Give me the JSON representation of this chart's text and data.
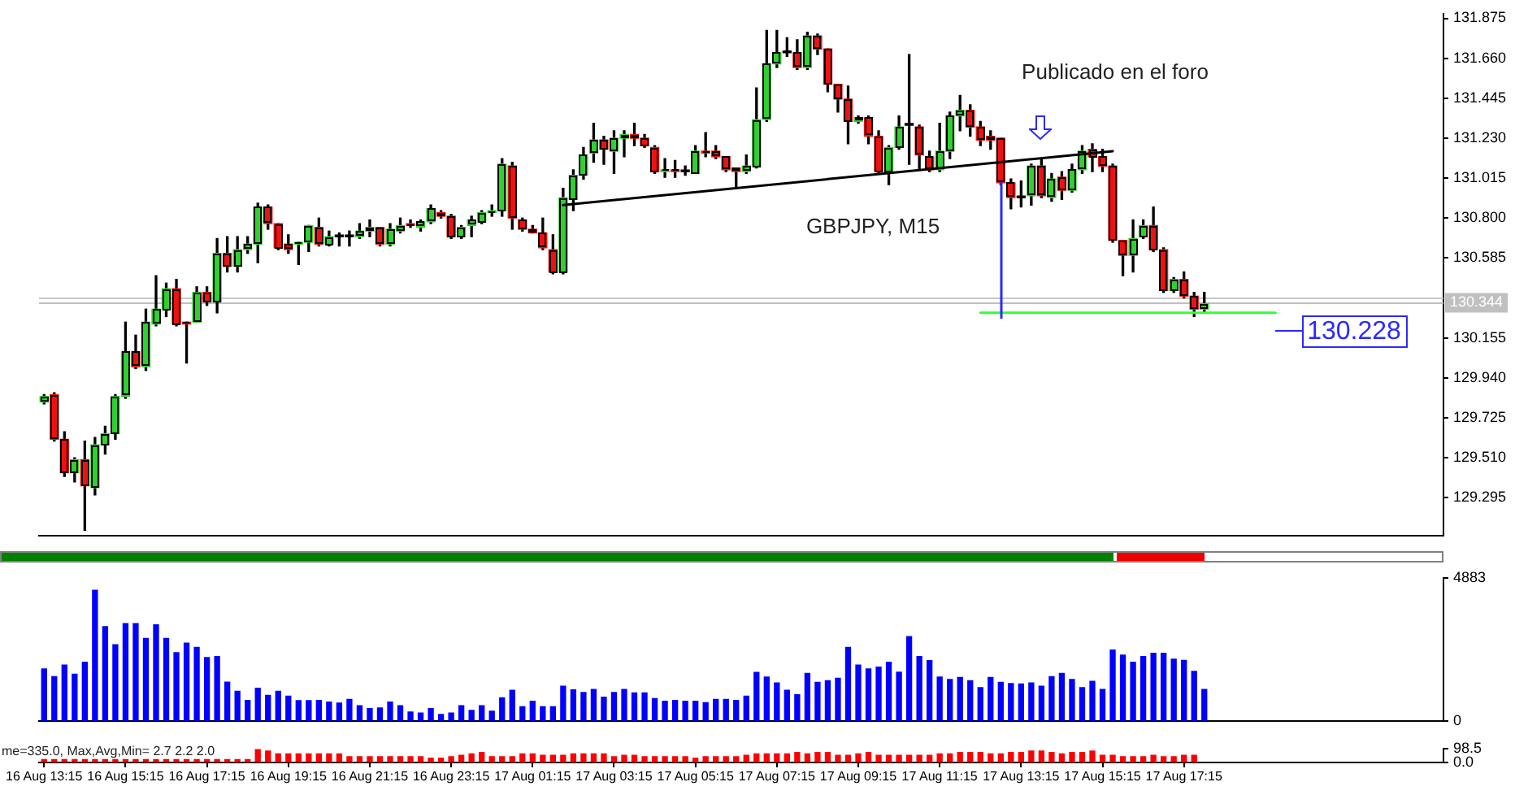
{
  "chart_data": [
    {
      "type": "candlestick",
      "annotations": [
        "Publicado en el foro",
        "GBPJPY, M15",
        "130.228"
      ],
      "categories": [
        null,
        null,
        null,
        null,
        null,
        null,
        null,
        null,
        null,
        null,
        null,
        null,
        null,
        null,
        null,
        null,
        null,
        null,
        null,
        null,
        null,
        null,
        null,
        null,
        null,
        null,
        null,
        null,
        null,
        null,
        null,
        null,
        null,
        null,
        null,
        null,
        null,
        null,
        null,
        null,
        null,
        null,
        null,
        null,
        null,
        null,
        null,
        null,
        null,
        null,
        null,
        null,
        null,
        null,
        null,
        null,
        null,
        null,
        null,
        null,
        null,
        null,
        null,
        null,
        null,
        null,
        null,
        null,
        null,
        null,
        null,
        null,
        null,
        null,
        null,
        null,
        null,
        null,
        null,
        null,
        null,
        null,
        null,
        null,
        null,
        null,
        null,
        null,
        null,
        null,
        null,
        null,
        null,
        null,
        null,
        null,
        null,
        null,
        null,
        null,
        null,
        null,
        null,
        null,
        null,
        null,
        null,
        null,
        null,
        null,
        null,
        null,
        null,
        null,
        null,
        null,
        null,
        null,
        null,
        null,
        null,
        null,
        null,
        null,
        null,
        null,
        null,
        null,
        null,
        null,
        null,
        null,
        null,
        null,
        null,
        null,
        null,
        null
      ],
      "ohlc": [
        [
          129.81,
          129.85,
          129.8,
          129.84
        ],
        [
          129.85,
          129.86,
          129.6,
          129.61
        ],
        [
          129.61,
          129.65,
          129.41,
          129.43
        ],
        [
          129.43,
          129.51,
          129.38,
          129.5
        ],
        [
          129.5,
          129.6,
          129.12,
          129.36
        ],
        [
          129.35,
          129.62,
          129.31,
          129.58
        ],
        [
          129.58,
          129.68,
          129.53,
          129.64
        ],
        [
          129.64,
          129.85,
          129.61,
          129.84
        ],
        [
          129.84,
          130.24,
          129.83,
          130.08
        ],
        [
          130.08,
          130.17,
          129.99,
          130.0
        ],
        [
          130.0,
          130.31,
          129.98,
          130.24
        ],
        [
          130.23,
          130.49,
          130.22,
          130.31
        ],
        [
          130.31,
          130.45,
          130.27,
          130.42
        ],
        [
          130.42,
          130.47,
          130.22,
          130.23
        ],
        [
          130.24,
          130.24,
          130.02,
          130.23
        ],
        [
          130.24,
          130.43,
          130.24,
          130.4
        ],
        [
          130.4,
          130.43,
          130.33,
          130.35
        ],
        [
          130.35,
          130.69,
          130.29,
          130.61
        ],
        [
          130.61,
          130.7,
          130.51,
          130.54
        ],
        [
          130.54,
          130.7,
          130.51,
          130.63
        ],
        [
          130.63,
          130.7,
          130.61,
          130.66
        ],
        [
          130.66,
          130.88,
          130.56,
          130.86
        ],
        [
          130.86,
          130.87,
          130.74,
          130.77
        ],
        [
          130.77,
          130.77,
          130.63,
          130.64
        ],
        [
          130.66,
          130.71,
          130.61,
          130.63
        ],
        [
          130.66,
          130.67,
          130.55,
          130.67
        ],
        [
          130.67,
          130.76,
          130.62,
          130.76
        ],
        [
          130.75,
          130.8,
          130.65,
          130.66
        ],
        [
          130.66,
          130.73,
          130.65,
          130.7
        ],
        [
          130.7,
          130.72,
          130.65,
          130.7
        ],
        [
          130.7,
          130.73,
          130.65,
          130.7
        ],
        [
          130.7,
          130.77,
          130.69,
          130.73
        ],
        [
          130.73,
          130.79,
          130.7,
          130.75
        ],
        [
          130.75,
          130.75,
          130.65,
          130.66
        ],
        [
          130.66,
          130.77,
          130.65,
          130.74
        ],
        [
          130.73,
          130.8,
          130.72,
          130.76
        ],
        [
          130.77,
          130.79,
          130.75,
          130.76
        ],
        [
          130.75,
          130.79,
          130.73,
          130.78
        ],
        [
          130.78,
          130.87,
          130.77,
          130.85
        ],
        [
          130.83,
          130.84,
          130.8,
          130.81
        ],
        [
          130.81,
          130.82,
          130.69,
          130.7
        ],
        [
          130.7,
          130.76,
          130.69,
          130.75
        ],
        [
          130.76,
          130.81,
          130.7,
          130.79
        ],
        [
          130.78,
          130.84,
          130.77,
          130.83
        ],
        [
          130.83,
          130.87,
          130.81,
          130.84
        ],
        [
          130.84,
          131.12,
          130.81,
          131.09
        ],
        [
          131.08,
          131.1,
          130.74,
          130.8
        ],
        [
          130.79,
          130.8,
          130.73,
          130.74
        ],
        [
          130.74,
          130.76,
          130.72,
          130.72
        ],
        [
          130.72,
          130.8,
          130.63,
          130.64
        ],
        [
          130.63,
          130.71,
          130.5,
          130.51
        ],
        [
          130.51,
          130.96,
          130.5,
          130.91
        ],
        [
          130.9,
          131.06,
          130.84,
          131.03
        ],
        [
          131.03,
          131.18,
          131.01,
          131.14
        ],
        [
          131.15,
          131.31,
          131.1,
          131.22
        ],
        [
          131.22,
          131.24,
          131.09,
          131.17
        ],
        [
          131.16,
          131.27,
          131.04,
          131.23
        ],
        [
          131.23,
          131.27,
          131.13,
          131.25
        ],
        [
          131.25,
          131.31,
          131.19,
          131.23
        ],
        [
          131.23,
          131.25,
          131.18,
          131.19
        ],
        [
          131.18,
          131.19,
          131.04,
          131.05
        ],
        [
          131.05,
          131.12,
          131.02,
          131.06
        ],
        [
          131.06,
          131.11,
          131.02,
          131.05
        ],
        [
          131.05,
          131.08,
          131.03,
          131.05
        ],
        [
          131.04,
          131.19,
          131.04,
          131.16
        ],
        [
          131.16,
          131.26,
          131.13,
          131.15
        ],
        [
          131.16,
          131.19,
          131.12,
          131.13
        ],
        [
          131.13,
          131.13,
          131.05,
          131.06
        ],
        [
          131.07,
          131.07,
          130.97,
          131.05
        ],
        [
          131.05,
          131.14,
          131.04,
          131.08
        ],
        [
          131.08,
          131.5,
          131.07,
          131.33
        ],
        [
          131.33,
          131.81,
          131.32,
          131.63
        ],
        [
          131.63,
          131.81,
          131.61,
          131.69
        ],
        [
          131.69,
          131.77,
          131.67,
          131.69
        ],
        [
          131.69,
          131.76,
          131.6,
          131.61
        ],
        [
          131.61,
          131.8,
          131.6,
          131.78
        ],
        [
          131.78,
          131.79,
          131.68,
          131.71
        ],
        [
          131.71,
          131.71,
          131.48,
          131.52
        ],
        [
          131.52,
          131.52,
          131.37,
          131.44
        ],
        [
          131.44,
          131.51,
          131.2,
          131.32
        ],
        [
          131.32,
          131.35,
          131.31,
          131.34
        ],
        [
          131.34,
          131.35,
          131.2,
          131.24
        ],
        [
          131.24,
          131.27,
          131.04,
          131.05
        ],
        [
          131.05,
          131.19,
          130.98,
          131.18
        ],
        [
          131.18,
          131.35,
          131.17,
          131.29
        ],
        [
          131.3,
          131.68,
          131.09,
          131.3
        ],
        [
          131.29,
          131.3,
          131.06,
          131.14
        ],
        [
          131.13,
          131.16,
          131.05,
          131.06
        ],
        [
          131.06,
          131.31,
          131.05,
          131.16
        ],
        [
          131.16,
          131.37,
          131.12,
          131.35
        ],
        [
          131.35,
          131.46,
          131.27,
          131.38
        ],
        [
          131.38,
          131.41,
          131.24,
          131.29
        ],
        [
          131.29,
          131.32,
          131.19,
          131.22
        ],
        [
          131.24,
          131.27,
          131.17,
          131.22
        ],
        [
          131.23,
          131.23,
          130.98,
          130.99
        ],
        [
          130.99,
          131.01,
          130.85,
          130.91
        ],
        [
          130.91,
          131.0,
          130.86,
          130.91
        ],
        [
          130.92,
          131.09,
          130.87,
          131.08
        ],
        [
          131.08,
          131.12,
          130.91,
          130.92
        ],
        [
          130.91,
          131.04,
          130.89,
          131.01
        ],
        [
          131.02,
          131.05,
          130.9,
          130.95
        ],
        [
          130.95,
          131.09,
          130.94,
          131.06
        ],
        [
          131.06,
          131.19,
          131.04,
          131.16
        ],
        [
          131.17,
          131.2,
          131.05,
          131.13
        ],
        [
          131.13,
          131.17,
          131.05,
          131.08
        ],
        [
          131.08,
          131.09,
          130.67,
          130.68
        ],
        [
          130.68,
          130.68,
          130.49,
          130.6
        ],
        [
          130.6,
          130.79,
          130.51,
          130.69
        ],
        [
          130.7,
          130.79,
          130.69,
          130.76
        ],
        [
          130.76,
          130.86,
          130.62,
          130.63
        ],
        [
          130.63,
          130.64,
          130.4,
          130.41
        ],
        [
          130.41,
          130.48,
          130.4,
          130.47
        ],
        [
          130.47,
          130.51,
          130.37,
          130.38
        ],
        [
          130.38,
          130.4,
          130.27,
          130.31
        ],
        [
          130.31,
          130.4,
          130.29,
          130.34
        ],
        null,
        null,
        null,
        null,
        null,
        null,
        null,
        null,
        null,
        null,
        null,
        null,
        null,
        null,
        null,
        null,
        null,
        null,
        null,
        null,
        null,
        null,
        null
      ],
      "colors": [
        "#30d030",
        "#ee1111",
        "#ee1111",
        "#30d030",
        "#ee1111",
        "#30d030",
        "#30d030",
        "#30d030",
        "#30d030",
        "#ee1111",
        "#30d030",
        "#30d030",
        "#30d030",
        "#ee1111",
        "#ee1111",
        "#30d030",
        "#ee1111",
        "#30d030",
        "#ee1111",
        "#30d030",
        "#30d030",
        "#30d030",
        "#ee1111",
        "#ee1111",
        "#ee1111",
        "#30d030",
        "#30d030",
        "#ee1111",
        "#30d030",
        "#000000",
        "#000000",
        "#30d030",
        "#30d030",
        "#ee1111",
        "#30d030",
        "#30d030",
        "#ee1111",
        "#30d030",
        "#30d030",
        "#ee1111",
        "#ee1111",
        "#30d030",
        "#30d030",
        "#30d030",
        "#30d030",
        "#30d030",
        "#ee1111",
        "#ee1111",
        "#ee1111",
        "#ee1111",
        "#ee1111",
        "#30d030",
        "#30d030",
        "#30d030",
        "#30d030",
        "#ee1111",
        "#30d030",
        "#30d030",
        "#ee1111",
        "#ee1111",
        "#ee1111",
        "#30d030",
        "#ee1111",
        "#000000",
        "#30d030",
        "#ee1111",
        "#ee1111",
        "#ee1111",
        "#ee1111",
        "#30d030",
        "#30d030",
        "#30d030",
        "#30d030",
        "#000000",
        "#ee1111",
        "#30d030",
        "#ee1111",
        "#ee1111",
        "#ee1111",
        "#ee1111",
        "#30d030",
        "#ee1111",
        "#ee1111",
        "#30d030",
        "#30d030",
        "#000000",
        "#ee1111",
        "#ee1111",
        "#30d030",
        "#30d030",
        "#30d030",
        "#ee1111",
        "#ee1111",
        "#ee1111",
        "#ee1111",
        "#ee1111",
        "#000000",
        "#30d030",
        "#ee1111",
        "#30d030",
        "#ee1111",
        "#30d030",
        "#30d030",
        "#ee1111",
        "#ee1111",
        "#ee1111",
        "#ee1111",
        "#30d030",
        "#30d030",
        "#ee1111",
        "#ee1111",
        "#30d030",
        "#ee1111",
        "#ee1111",
        "#30d030",
        null,
        null,
        null,
        null,
        null,
        null,
        null,
        null,
        null,
        null,
        null,
        null,
        null,
        null,
        null,
        null,
        null,
        null,
        null,
        null,
        null,
        null,
        null
      ],
      "series": [
        {
          "type": "line",
          "color": "#000000",
          "values": [
            null,
            null,
            null,
            null,
            null,
            null,
            null,
            null,
            null,
            null,
            null,
            null,
            null,
            null,
            null,
            null,
            null,
            null,
            null,
            null,
            null,
            null,
            null,
            null,
            null,
            null,
            null,
            null,
            null,
            null,
            null,
            null,
            null,
            null,
            null,
            null,
            null,
            null,
            null,
            null,
            null,
            null,
            null,
            null,
            null,
            null,
            null,
            null,
            null,
            null,
            null,
            130.87,
            null,
            null,
            null,
            null,
            null,
            null,
            null,
            null,
            null,
            null,
            null,
            null,
            null,
            null,
            null,
            null,
            null,
            null,
            null,
            null,
            null,
            null,
            null,
            null,
            null,
            null,
            null,
            null,
            null,
            null,
            null,
            null,
            null,
            null,
            null,
            null,
            null,
            null,
            null,
            null,
            null,
            null,
            null,
            null,
            null,
            null,
            null,
            null,
            null,
            null,
            null,
            null,
            null,
            131.16,
            null,
            null,
            null,
            null,
            null,
            null,
            null,
            null,
            null,
            null,
            null,
            null,
            null,
            null,
            null,
            null,
            null,
            null,
            null,
            null,
            null,
            null,
            null,
            null,
            null,
            null,
            null,
            null,
            null,
            null,
            null,
            null
          ]
        },
        {
          "type": "line",
          "color": "#33ff33",
          "values": [
            null,
            null,
            null,
            null,
            null,
            null,
            null,
            null,
            null,
            null,
            null,
            null,
            null,
            null,
            null,
            null,
            null,
            null,
            null,
            null,
            null,
            null,
            null,
            null,
            null,
            null,
            null,
            null,
            null,
            null,
            null,
            null,
            null,
            null,
            null,
            null,
            null,
            null,
            null,
            null,
            null,
            null,
            null,
            null,
            null,
            null,
            null,
            null,
            null,
            null,
            null,
            null,
            null,
            null,
            null,
            null,
            null,
            null,
            null,
            null,
            null,
            null,
            null,
            null,
            null,
            null,
            null,
            null,
            null,
            null,
            null,
            null,
            null,
            null,
            null,
            null,
            null,
            null,
            null,
            null,
            null,
            null,
            null,
            null,
            null,
            null,
            null,
            null,
            null,
            null,
            null,
            null,
            130.29,
            null,
            null,
            null,
            null,
            null,
            null,
            null,
            null,
            null,
            null,
            null,
            null,
            null,
            null,
            null,
            null,
            null,
            null,
            null,
            null,
            null,
            null,
            null,
            null,
            null,
            null,
            null,
            null,
            130.29,
            null,
            null,
            null,
            null,
            null,
            null,
            null,
            null,
            null,
            null,
            null,
            null,
            null,
            null,
            null,
            null
          ]
        }
      ],
      "ylim": [
        129.09,
        131.9
      ],
      "yticks": [
        131.875,
        {
          "value": 131.66,
          "label": "131.660"
        },
        131.445,
        {
          "value": 131.23,
          "label": "131.230"
        },
        131.015,
        {
          "value": 130.8,
          "label": "130.800"
        },
        130.585,
        130.155,
        {
          "value": 129.94,
          "label": "129.940"
        },
        129.725,
        {
          "value": 129.51,
          "label": "129.510"
        },
        129.295
      ],
      "ref_lines": [
        {
          "axis": "y",
          "value": 130.375,
          "color": "#c8c8c8"
        },
        {
          "axis": "y",
          "value": 130.344,
          "label": "130.344",
          "color": "#c0c0c0"
        }
      ],
      "tick_labels": "y"
    },
    {
      "type": "bar",
      "categories": [
        null,
        null,
        null,
        null,
        null,
        null,
        null,
        null,
        null,
        null,
        null,
        null,
        null,
        null,
        null,
        null,
        null,
        null,
        null,
        null,
        null,
        null,
        null,
        null,
        null,
        null,
        null,
        null,
        null,
        null,
        null,
        null,
        null,
        null,
        null,
        null,
        null,
        null,
        null,
        null,
        null,
        null,
        null,
        null,
        null,
        null,
        null,
        null,
        null,
        null,
        null,
        null,
        null,
        null,
        null,
        null,
        null,
        null,
        null,
        null,
        null,
        null,
        null,
        null,
        null,
        null,
        null,
        null,
        null,
        null,
        null,
        null,
        null,
        null,
        null,
        null,
        null,
        null,
        null,
        null,
        null,
        null,
        null,
        null,
        null,
        null,
        null,
        null,
        null,
        null,
        null,
        null,
        null,
        null,
        null,
        null,
        null,
        null,
        null,
        null,
        null,
        null,
        null,
        null,
        null,
        null,
        null,
        null,
        null,
        null,
        null,
        null,
        null,
        null,
        null,
        null,
        null,
        null,
        null,
        null,
        null,
        null,
        null,
        null,
        null,
        null,
        null,
        null,
        null,
        null,
        null,
        null,
        null,
        null,
        null,
        null,
        null,
        null
      ],
      "values": [
        1780,
        1520,
        1910,
        1600,
        2010,
        4460,
        3220,
        2600,
        3320,
        3320,
        2820,
        3280,
        2820,
        2330,
        2660,
        2510,
        2170,
        2200,
        1330,
        1020,
        710,
        1120,
        880,
        1020,
        850,
        700,
        700,
        710,
        650,
        620,
        740,
        530,
        430,
        450,
        650,
        530,
        310,
        280,
        430,
        230,
        280,
        530,
        370,
        530,
        340,
        800,
        1050,
        490,
        680,
        490,
        490,
        1190,
        1070,
        980,
        1080,
        820,
        980,
        1080,
        960,
        960,
        770,
        680,
        710,
        680,
        680,
        630,
        740,
        740,
        710,
        850,
        1660,
        1500,
        1300,
        1050,
        900,
        1630,
        1320,
        1380,
        1460,
        2510,
        1910,
        1780,
        1840,
        2010,
        1670,
        2880,
        2200,
        2060,
        1500,
        1420,
        1490,
        1380,
        1140,
        1490,
        1320,
        1280,
        1270,
        1300,
        1190,
        1520,
        1630,
        1420,
        1140,
        1360,
        1080,
        2420,
        2250,
        2010,
        2200,
        2310,
        2310,
        2110,
        2070,
        1700,
        1080,
        null,
        null,
        null,
        null,
        null,
        null,
        null,
        null,
        null,
        null,
        null,
        null,
        null,
        null,
        null,
        null,
        null,
        null,
        null,
        null,
        null,
        null,
        null
      ],
      "color": "#0000ff",
      "ylim": [
        0,
        4883
      ],
      "yticks": [
        0,
        4883
      ],
      "tick_labels": "y"
    },
    {
      "type": "bar",
      "annotations": [
        "me=335.0, Max,Avg,Min= 2.7 2.2 2.0"
      ],
      "categories": [
        "16 Aug 13:15",
        null,
        null,
        null,
        null,
        null,
        null,
        null,
        "16 Aug 15:15",
        null,
        null,
        null,
        null,
        null,
        null,
        null,
        "16 Aug 17:15",
        null,
        null,
        null,
        null,
        null,
        null,
        null,
        "16 Aug 19:15",
        null,
        null,
        null,
        null,
        null,
        null,
        null,
        "16 Aug 21:15",
        null,
        null,
        null,
        null,
        null,
        null,
        null,
        "16 Aug 23:15",
        null,
        null,
        null,
        null,
        null,
        null,
        null,
        "17 Aug 01:15",
        null,
        null,
        null,
        null,
        null,
        null,
        null,
        "17 Aug 03:15",
        null,
        null,
        null,
        null,
        null,
        null,
        null,
        "17 Aug 05:15",
        null,
        null,
        null,
        null,
        null,
        null,
        null,
        "17 Aug 07:15",
        null,
        null,
        null,
        null,
        null,
        null,
        null,
        "17 Aug 09:15",
        null,
        null,
        null,
        null,
        null,
        null,
        null,
        "17 Aug 11:15",
        null,
        null,
        null,
        null,
        null,
        null,
        null,
        "17 Aug 13:15",
        null,
        null,
        null,
        null,
        null,
        null,
        null,
        "17 Aug 15:15",
        null,
        null,
        null,
        null,
        null,
        null,
        null,
        "17 Aug 17:15",
        null,
        null,
        null,
        null,
        null,
        null,
        null,
        null,
        null,
        null,
        null,
        null,
        null,
        null,
        null,
        null,
        null,
        null,
        null,
        null,
        null,
        null,
        null,
        null,
        null
      ],
      "values": [
        20,
        20,
        20,
        20,
        20,
        20,
        20,
        20,
        20,
        20,
        20,
        20,
        20,
        20,
        20,
        20,
        20,
        20,
        20,
        20,
        20,
        90,
        80,
        60,
        60,
        60,
        60,
        60,
        60,
        60,
        40,
        40,
        40,
        40,
        40,
        40,
        40,
        40,
        30,
        30,
        40,
        50,
        60,
        70,
        40,
        40,
        40,
        60,
        60,
        50,
        50,
        50,
        60,
        60,
        60,
        60,
        40,
        50,
        50,
        40,
        40,
        40,
        40,
        40,
        30,
        40,
        40,
        40,
        40,
        50,
        60,
        60,
        60,
        60,
        70,
        60,
        70,
        70,
        50,
        50,
        60,
        70,
        50,
        50,
        50,
        50,
        50,
        50,
        60,
        60,
        70,
        70,
        70,
        60,
        60,
        70,
        70,
        80,
        80,
        70,
        60,
        70,
        70,
        80,
        50,
        50,
        40,
        40,
        40,
        50,
        40,
        40,
        50,
        50,
        null,
        null,
        null,
        null,
        null,
        null,
        null,
        null,
        null,
        null,
        null,
        null,
        null,
        null,
        null,
        null,
        null,
        null,
        null,
        null,
        null,
        null,
        null,
        null
      ],
      "color": "#ff0000",
      "ylim": [
        0,
        98.5
      ],
      "yticks": [
        {
          "value": 0,
          "label": "0.0"
        },
        98.5
      ]
    }
  ]
}
